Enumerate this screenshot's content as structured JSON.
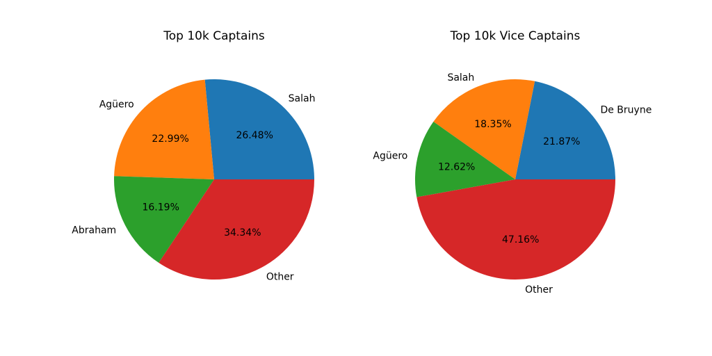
{
  "colors": [
    "#1f77b4",
    "#ff7f0e",
    "#2ca02c",
    "#d62728"
  ],
  "chart_data": [
    {
      "type": "pie",
      "title": "Top 10k Captains",
      "slices": [
        {
          "label": "Salah",
          "value": 26.48,
          "pct_label": "26.48%"
        },
        {
          "label": "Agüero",
          "value": 22.99,
          "pct_label": "22.99%"
        },
        {
          "label": "Abraham",
          "value": 16.19,
          "pct_label": "16.19%"
        },
        {
          "label": "Other",
          "value": 34.34,
          "pct_label": "34.34%"
        }
      ]
    },
    {
      "type": "pie",
      "title": "Top 10k Vice Captains",
      "slices": [
        {
          "label": "De Bruyne",
          "value": 21.87,
          "pct_label": "21.87%"
        },
        {
          "label": "Salah",
          "value": 18.35,
          "pct_label": "18.35%"
        },
        {
          "label": "Agüero",
          "value": 12.62,
          "pct_label": "12.62%"
        },
        {
          "label": "Other",
          "value": 47.16,
          "pct_label": "47.16%"
        }
      ]
    }
  ]
}
